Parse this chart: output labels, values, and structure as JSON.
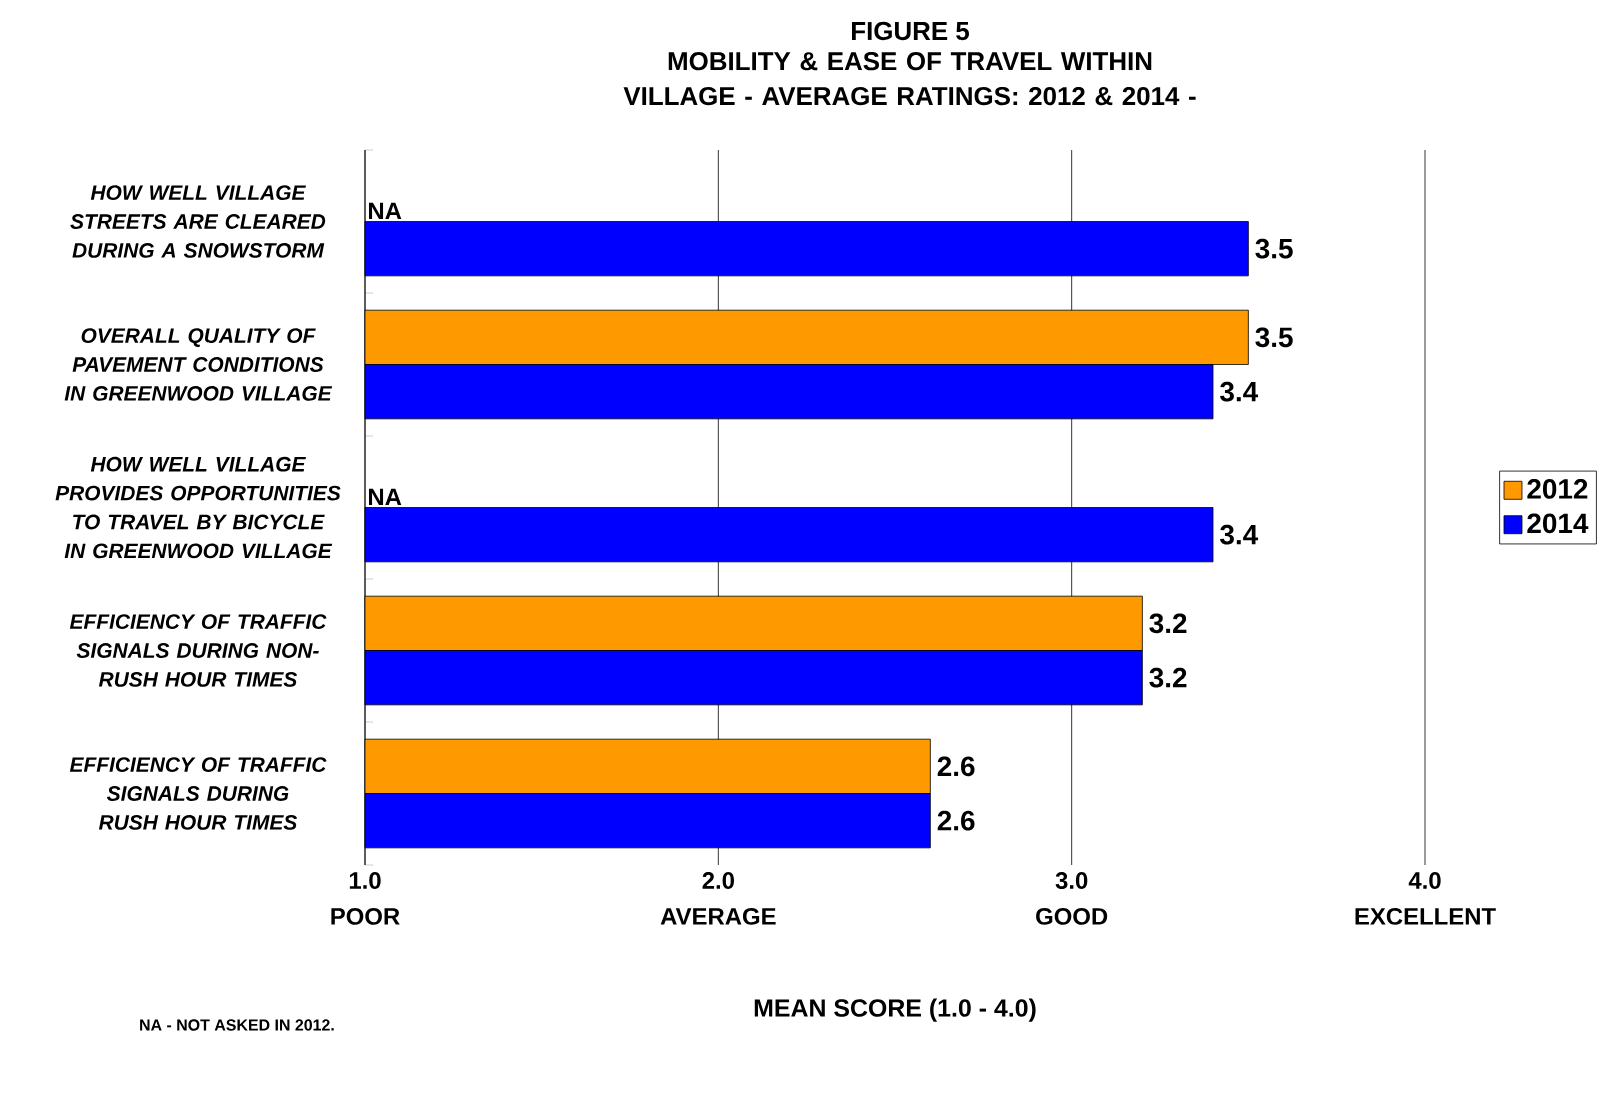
{
  "chart_data": {
    "type": "bar",
    "orientation": "horizontal",
    "title": "FIGURE 5",
    "subtitle": "MOBILITY & EASE OF TRAVEL WITHIN VILLAGE - AVERAGE RATINGS: 2012 & 2014 -",
    "xlabel": "MEAN SCORE (1.0 - 4.0)",
    "categories": [
      "HOW WELL VILLAGE STREETS ARE CLEARED DURING A SNOWSTORM",
      "OVERALL QUALITY OF PAVEMENT CONDITIONS IN GREENWOOD VILLAGE",
      "HOW WELL VILLAGE PROVIDES OPPORTUNITIES TO TRAVEL BY BICYCLE IN GREENWOOD VILLAGE",
      "EFFICIENCY OF TRAFFIC SIGNALS DURING NON-RUSH HOUR TIMES",
      "EFFICIENCY OF TRAFFIC SIGNALS DURING RUSH HOUR TIMES"
    ],
    "series": [
      {
        "name": "2012",
        "color": "#ff9900",
        "values": [
          null,
          3.5,
          null,
          3.2,
          2.6
        ],
        "value_labels": [
          "NA",
          "3.5",
          "NA",
          "3.2",
          "2.6"
        ]
      },
      {
        "name": "2014",
        "color": "#0000ff",
        "values": [
          3.5,
          3.4,
          3.4,
          3.2,
          2.6
        ],
        "value_labels": [
          "3.5",
          "3.4",
          "3.4",
          "3.2",
          "2.6"
        ]
      }
    ],
    "xlim": [
      1,
      4
    ],
    "xticks": [
      {
        "value": 1,
        "label": "1.0\nPOOR"
      },
      {
        "value": 2,
        "label": "2.0\nAVERAGE"
      },
      {
        "value": 3,
        "label": "3.0\nGOOD"
      },
      {
        "value": 4,
        "label": "4.0\nEXCELLENT"
      }
    ],
    "grid": "x",
    "legend": "right",
    "annotations": [
      "NA - NOT ASKED IN 2012."
    ]
  }
}
